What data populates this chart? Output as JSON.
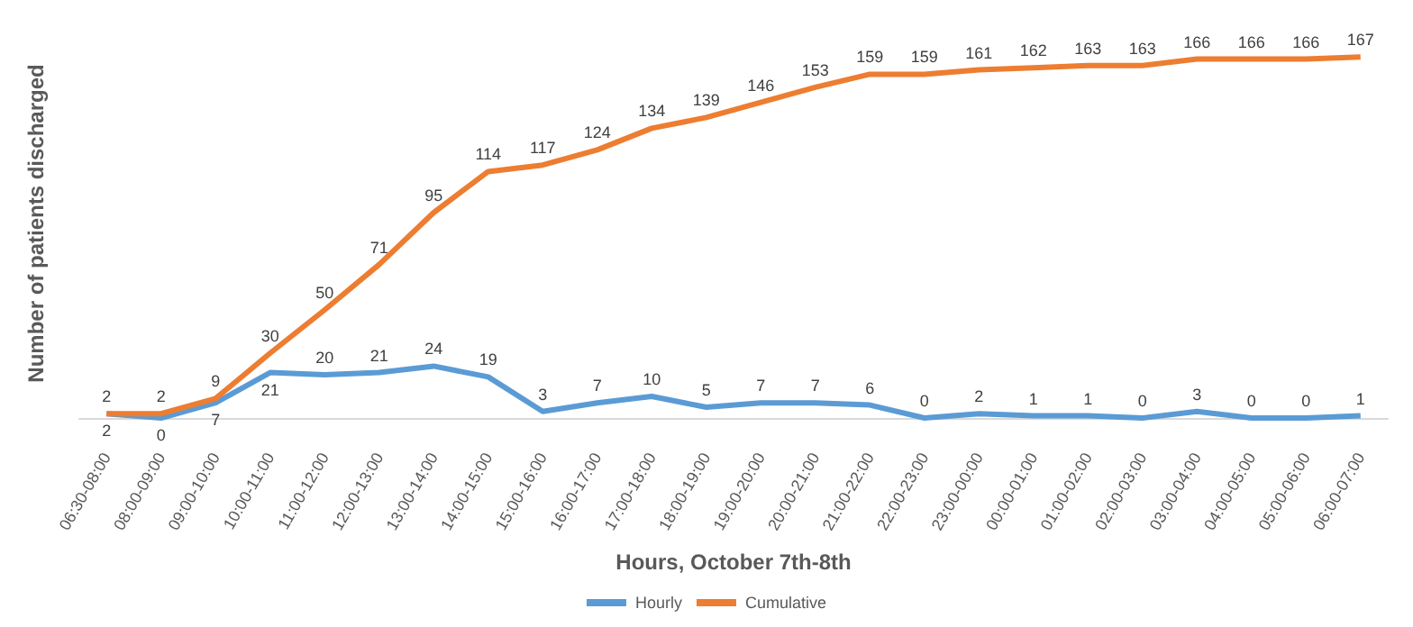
{
  "chart_data": {
    "type": "line",
    "xlabel": "Hours, October 7th-8th",
    "ylabel": "Number of patients discharged",
    "categories": [
      "06:30-08:00",
      "08:00-09:00",
      "09:00-10:00",
      "10:00-11:00",
      "11:00-12:00",
      "12:00-13:00",
      "13:00-14:00",
      "14:00-15:00",
      "15:00-16:00",
      "16:00-17:00",
      "17:00-18:00",
      "18:00-19:00",
      "19:00-20:00",
      "20:00-21:00",
      "21:00-22:00",
      "22:00-23:00",
      "23:00-00:00",
      "00:00-01:00",
      "01:00-02:00",
      "02:00-03:00",
      "03:00-04:00",
      "04:00-05:00",
      "05:00-06:00",
      "06:00-07:00"
    ],
    "series": [
      {
        "name": "Hourly",
        "color": "#5b9bd5",
        "values": [
          2,
          0,
          7,
          21,
          20,
          21,
          24,
          19,
          3,
          7,
          10,
          5,
          7,
          7,
          6,
          0,
          2,
          1,
          1,
          0,
          3,
          0,
          0,
          1
        ]
      },
      {
        "name": "Cumulative",
        "color": "#ed7d31",
        "values": [
          2,
          2,
          9,
          30,
          50,
          71,
          95,
          114,
          117,
          124,
          134,
          139,
          146,
          153,
          159,
          159,
          161,
          162,
          163,
          163,
          166,
          166,
          166,
          167
        ]
      }
    ],
    "data_labels": true,
    "legend": "bottom",
    "grid": false,
    "marker": "none",
    "tick_labels": "x"
  }
}
